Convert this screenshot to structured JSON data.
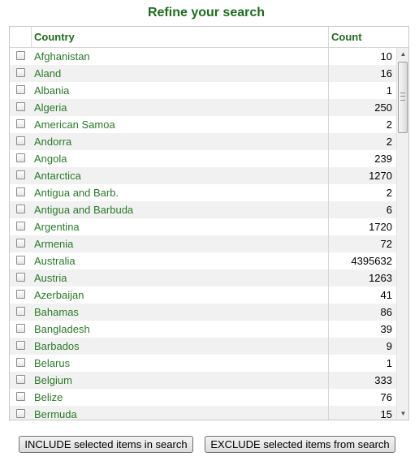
{
  "title": "Refine your search",
  "columns": {
    "country": "Country",
    "count": "Count"
  },
  "rows": [
    {
      "country": "Afghanistan",
      "count": "10"
    },
    {
      "country": "Aland",
      "count": "16"
    },
    {
      "country": "Albania",
      "count": "1"
    },
    {
      "country": "Algeria",
      "count": "250"
    },
    {
      "country": "American Samoa",
      "count": "2"
    },
    {
      "country": "Andorra",
      "count": "2"
    },
    {
      "country": "Angola",
      "count": "239"
    },
    {
      "country": "Antarctica",
      "count": "1270"
    },
    {
      "country": "Antigua and Barb.",
      "count": "2"
    },
    {
      "country": "Antigua and Barbuda",
      "count": "6"
    },
    {
      "country": "Argentina",
      "count": "1720"
    },
    {
      "country": "Armenia",
      "count": "72"
    },
    {
      "country": "Australia",
      "count": "4395632"
    },
    {
      "country": "Austria",
      "count": "1263"
    },
    {
      "country": "Azerbaijan",
      "count": "41"
    },
    {
      "country": "Bahamas",
      "count": "86"
    },
    {
      "country": "Bangladesh",
      "count": "39"
    },
    {
      "country": "Barbados",
      "count": "9"
    },
    {
      "country": "Belarus",
      "count": "1"
    },
    {
      "country": "Belgium",
      "count": "333"
    },
    {
      "country": "Belize",
      "count": "76"
    },
    {
      "country": "Bermuda",
      "count": "15"
    }
  ],
  "buttons": {
    "include": "INCLUDE selected items in search",
    "exclude": "EXCLUDE selected items from search"
  },
  "colors": {
    "title": "#1f6b1f",
    "link": "#2a7a2a",
    "alt_row": "#f1f1f1"
  },
  "icons": {
    "scroll_up": "arrow-up-icon",
    "scroll_down": "arrow-down-icon",
    "grip": "scroll-grip-icon"
  }
}
